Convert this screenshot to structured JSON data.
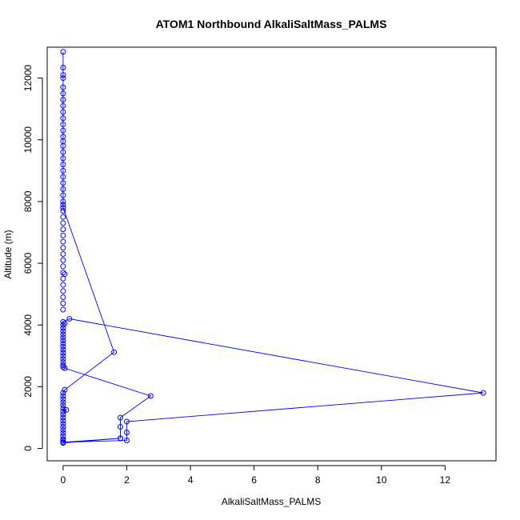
{
  "chart_data": {
    "type": "line",
    "title": "ATOM1 Northbound AlkaliSaltMass_PALMS",
    "xlabel": "AlkaliSaltMass_PALMS",
    "ylabel": "Altitude (m)",
    "xlim": [
      -0.5,
      13.6
    ],
    "ylim": [
      -400,
      13000
    ],
    "x_ticks": [
      0,
      2,
      4,
      6,
      8,
      10,
      12
    ],
    "y_ticks": [
      0,
      2000,
      4000,
      6000,
      8000,
      10000,
      12000
    ],
    "grid": false,
    "legend": "none",
    "series_color": "#0000ff",
    "series": [
      {
        "points": [
          [
            0,
            12850
          ],
          [
            0,
            12340
          ],
          [
            0,
            12100
          ],
          [
            0,
            12000
          ],
          [
            0,
            11700
          ],
          [
            0,
            11500
          ],
          [
            0,
            11300
          ],
          [
            0,
            11100
          ],
          [
            0,
            10900
          ],
          [
            0,
            10700
          ],
          [
            0,
            10500
          ],
          [
            0,
            10300
          ],
          [
            0,
            10100
          ],
          [
            0,
            9950
          ],
          [
            0,
            9800
          ],
          [
            0,
            9600
          ],
          [
            0,
            9400
          ],
          [
            0,
            9200
          ],
          [
            0,
            9000
          ],
          [
            0,
            8800
          ],
          [
            0,
            8600
          ],
          [
            0,
            8400
          ],
          [
            0,
            8200
          ],
          [
            0,
            8000
          ],
          [
            0,
            7900
          ],
          [
            0,
            7800
          ],
          [
            1.6,
            3120
          ],
          [
            0.05,
            1900
          ],
          [
            0,
            1800
          ],
          [
            0,
            1700
          ],
          [
            0,
            1600
          ],
          [
            0,
            1500
          ],
          [
            0,
            1400
          ],
          [
            0,
            1300
          ],
          [
            0,
            1200
          ],
          [
            0.1,
            1250
          ],
          [
            0,
            1100
          ],
          [
            0,
            1000
          ],
          [
            0,
            900
          ],
          [
            0,
            800
          ],
          [
            0,
            700
          ],
          [
            0,
            600
          ],
          [
            0,
            500
          ],
          [
            0,
            400
          ],
          [
            0,
            300
          ],
          [
            0,
            250
          ],
          [
            0,
            200
          ],
          [
            0,
            180
          ],
          [
            1.8,
            330
          ],
          [
            0,
            200
          ],
          [
            2.0,
            260
          ],
          [
            2.0,
            520
          ],
          [
            2.0,
            870
          ],
          [
            13.2,
            1800
          ],
          [
            0.2,
            4200
          ],
          [
            0,
            4100
          ],
          [
            0,
            4000
          ],
          [
            0,
            3900
          ],
          [
            0,
            3800
          ],
          [
            0,
            3700
          ],
          [
            0,
            3600
          ],
          [
            0,
            3500
          ],
          [
            0,
            3400
          ],
          [
            0,
            3300
          ],
          [
            0,
            3200
          ],
          [
            0,
            3100
          ],
          [
            0,
            3000
          ],
          [
            0,
            2900
          ],
          [
            0,
            2800
          ],
          [
            0,
            2700
          ],
          [
            0,
            2640
          ],
          [
            0.05,
            2600
          ],
          [
            2.75,
            1700
          ],
          [
            1.8,
            1000
          ],
          [
            1.8,
            700
          ],
          [
            1.8,
            330
          ]
        ],
        "extra_points": [
          [
            0,
            7700
          ],
          [
            0,
            7500
          ],
          [
            0,
            7300
          ],
          [
            0,
            7100
          ],
          [
            0,
            6900
          ],
          [
            0,
            6700
          ],
          [
            0,
            6500
          ],
          [
            0,
            6300
          ],
          [
            0,
            6100
          ],
          [
            0,
            5900
          ],
          [
            0,
            5700
          ],
          [
            0.05,
            5650
          ],
          [
            0,
            5500
          ],
          [
            0,
            5300
          ],
          [
            0,
            5100
          ],
          [
            0,
            4900
          ],
          [
            0,
            4700
          ],
          [
            0,
            4500
          ],
          [
            0.05,
            4050
          ]
        ]
      }
    ]
  }
}
